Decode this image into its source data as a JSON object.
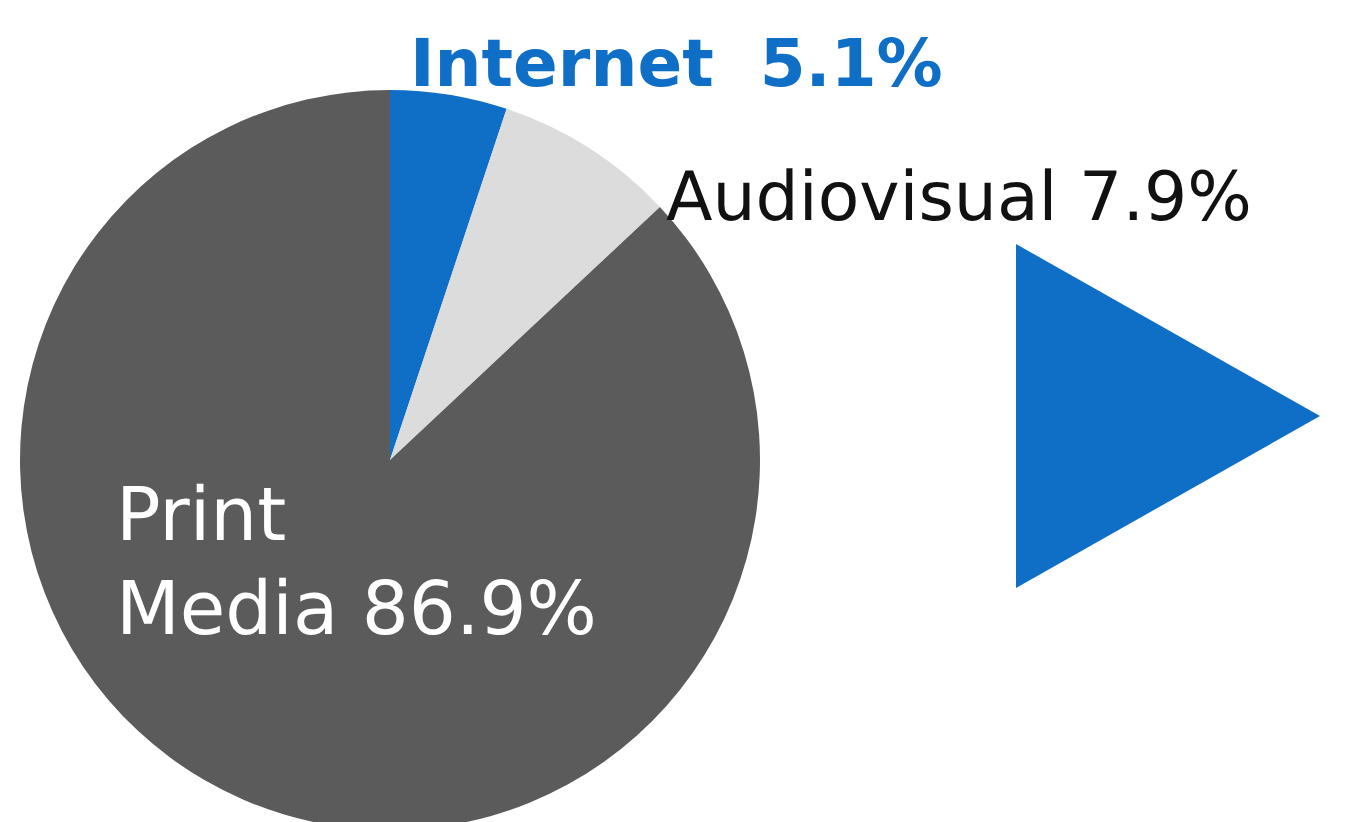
{
  "chart_data": {
    "type": "pie",
    "categories": [
      "Internet",
      "Audiovisual",
      "Print Media"
    ],
    "values": [
      5.1,
      7.9,
      86.9
    ],
    "value_labels": [
      "5.1%",
      "7.9%",
      "86.9%"
    ],
    "colors": [
      "#0f6fc6",
      "#dcdcdc",
      "#5b5b5b"
    ]
  }
}
